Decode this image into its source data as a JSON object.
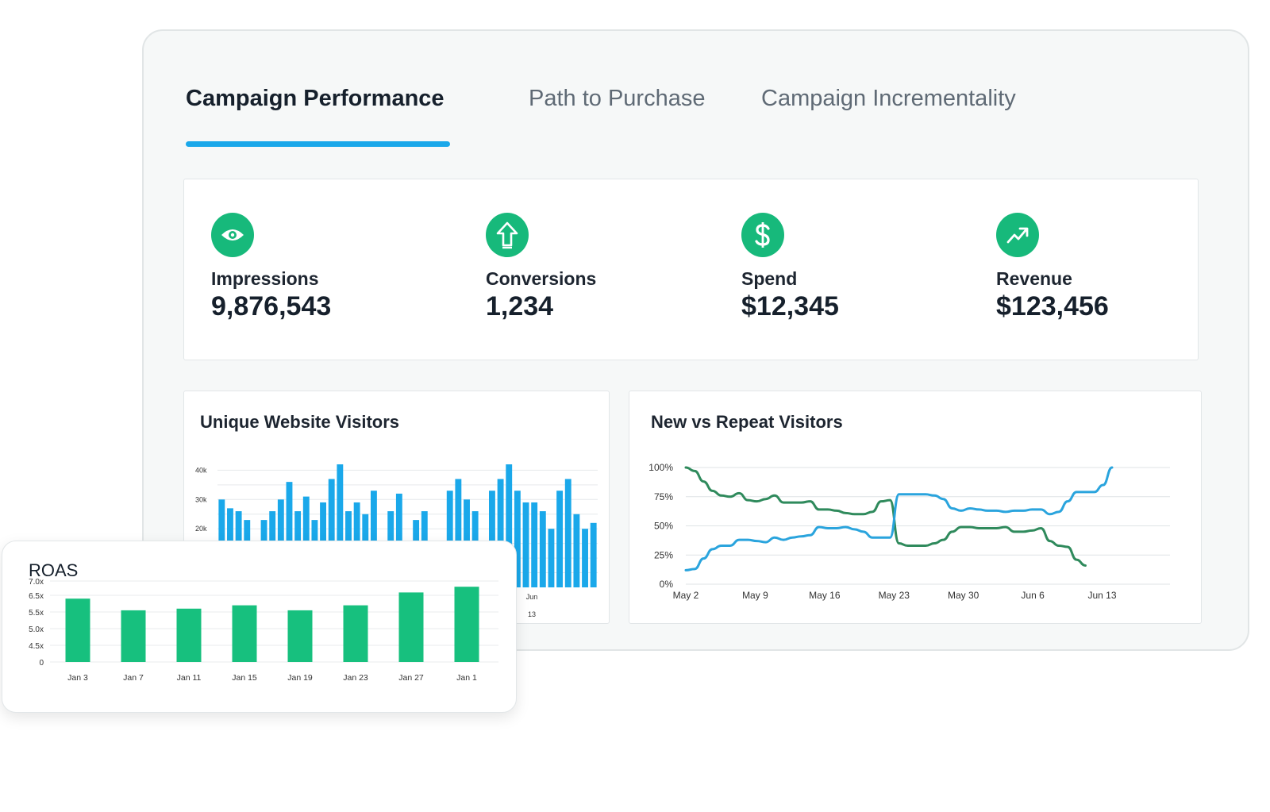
{
  "tabs": [
    {
      "label": "Campaign Performance",
      "active": true
    },
    {
      "label": "Path to Purchase",
      "active": false
    },
    {
      "label": "Campaign Incrementality",
      "active": false
    }
  ],
  "accent_color": "#1aa8ea",
  "kpi_color": "#17b97b",
  "kpis": [
    {
      "label": "Impressions",
      "value": "9,876,543",
      "icon": "eye-icon"
    },
    {
      "label": "Conversions",
      "value": "1,234",
      "icon": "arrow-up-icon"
    },
    {
      "label": "Spend",
      "value": "$12,345",
      "icon": "dollar-icon"
    },
    {
      "label": "Revenue",
      "value": "$123,456",
      "icon": "trend-up-icon"
    }
  ],
  "chart_data": [
    {
      "type": "bar",
      "title": "Unique Website Visitors",
      "color": "#1aa8ea",
      "ytick_labels": [
        "40k",
        "30k",
        "20k"
      ],
      "yticks": [
        40,
        30,
        20
      ],
      "ylim": [
        0,
        42
      ],
      "xtick_label": [
        "Jun",
        "13"
      ],
      "values": [
        30,
        27,
        26,
        23,
        0,
        23,
        26,
        30,
        36,
        26,
        31,
        23,
        29,
        37,
        42,
        26,
        29,
        25,
        33,
        0,
        26,
        32,
        0,
        23,
        26,
        0,
        0,
        33,
        37,
        30,
        26,
        0,
        33,
        37,
        42,
        33,
        29,
        29,
        26,
        20,
        33,
        37,
        25,
        20,
        22
      ]
    },
    {
      "type": "line",
      "title": "New vs Repeat Visitors",
      "x_labels": [
        "May 2",
        "May 9",
        "May 16",
        "May 23",
        "May 30",
        "Jun 6",
        "Jun 13"
      ],
      "ytick_labels": [
        "100%",
        "75%",
        "50%",
        "25%",
        "0%"
      ],
      "yticks": [
        100,
        75,
        50,
        25,
        0
      ],
      "ylim": [
        0,
        100
      ],
      "x_days": [
        0,
        43
      ],
      "series": [
        {
          "color": "#2f8a5c",
          "points": [
            [
              0,
              100
            ],
            [
              1,
              97
            ],
            [
              2,
              88
            ],
            [
              3,
              80
            ],
            [
              4,
              76
            ],
            [
              5,
              75
            ],
            [
              6,
              78
            ],
            [
              7,
              72
            ],
            [
              8,
              71
            ],
            [
              9,
              73
            ],
            [
              10,
              76
            ],
            [
              11,
              70
            ],
            [
              12,
              70
            ],
            [
              13,
              70
            ],
            [
              14,
              71
            ],
            [
              15,
              64
            ],
            [
              16,
              64
            ],
            [
              17,
              63
            ],
            [
              18,
              61
            ],
            [
              19,
              60
            ],
            [
              20,
              60
            ],
            [
              21,
              62
            ],
            [
              22,
              71
            ],
            [
              23,
              72
            ],
            [
              24,
              35
            ],
            [
              25,
              33
            ],
            [
              26,
              33
            ],
            [
              27,
              33
            ],
            [
              28,
              35
            ],
            [
              29,
              38
            ],
            [
              30,
              45
            ],
            [
              31,
              49
            ],
            [
              32,
              49
            ],
            [
              33,
              48
            ],
            [
              34,
              48
            ],
            [
              35,
              48
            ],
            [
              36,
              49
            ],
            [
              37,
              45
            ],
            [
              38,
              45
            ],
            [
              39,
              46
            ],
            [
              40,
              48
            ],
            [
              41,
              37
            ],
            [
              42,
              33
            ],
            [
              43,
              32
            ],
            [
              44,
              21
            ],
            [
              45,
              16
            ]
          ]
        },
        {
          "color": "#2aa4dd",
          "points": [
            [
              0,
              12
            ],
            [
              1,
              13
            ],
            [
              2,
              22
            ],
            [
              3,
              30
            ],
            [
              4,
              33
            ],
            [
              5,
              33
            ],
            [
              6,
              38
            ],
            [
              7,
              38
            ],
            [
              8,
              37
            ],
            [
              9,
              36
            ],
            [
              10,
              40
            ],
            [
              11,
              38
            ],
            [
              12,
              40
            ],
            [
              13,
              41
            ],
            [
              14,
              42
            ],
            [
              15,
              49
            ],
            [
              16,
              48
            ],
            [
              17,
              48
            ],
            [
              18,
              49
            ],
            [
              19,
              47
            ],
            [
              20,
              45
            ],
            [
              21,
              40
            ],
            [
              22,
              40
            ],
            [
              23,
              40
            ],
            [
              24,
              77
            ],
            [
              25,
              77
            ],
            [
              26,
              77
            ],
            [
              27,
              77
            ],
            [
              28,
              76
            ],
            [
              29,
              73
            ],
            [
              30,
              65
            ],
            [
              31,
              63
            ],
            [
              32,
              65
            ],
            [
              33,
              64
            ],
            [
              34,
              63
            ],
            [
              35,
              63
            ],
            [
              36,
              62
            ],
            [
              37,
              63
            ],
            [
              38,
              63
            ],
            [
              39,
              64
            ],
            [
              40,
              64
            ],
            [
              41,
              60
            ],
            [
              42,
              62
            ],
            [
              43,
              71
            ],
            [
              44,
              79
            ],
            [
              45,
              79
            ],
            [
              46,
              79
            ],
            [
              47,
              85
            ],
            [
              48,
              100
            ]
          ]
        }
      ]
    },
    {
      "type": "bar",
      "title": "ROAS",
      "color": "#17c07e",
      "ytick_labels": [
        "7.0x",
        "6.5x",
        "5.5x",
        "5.0x",
        "4.5x",
        "0"
      ],
      "categories": [
        "Jan 3",
        "Jan 7",
        "Jan 11",
        "Jan 15",
        "Jan 19",
        "Jan 23",
        "Jan 27",
        "Jan 1"
      ],
      "values": [
        6.3,
        5.6,
        5.7,
        5.9,
        5.6,
        5.9,
        6.6,
        6.8
      ]
    }
  ]
}
